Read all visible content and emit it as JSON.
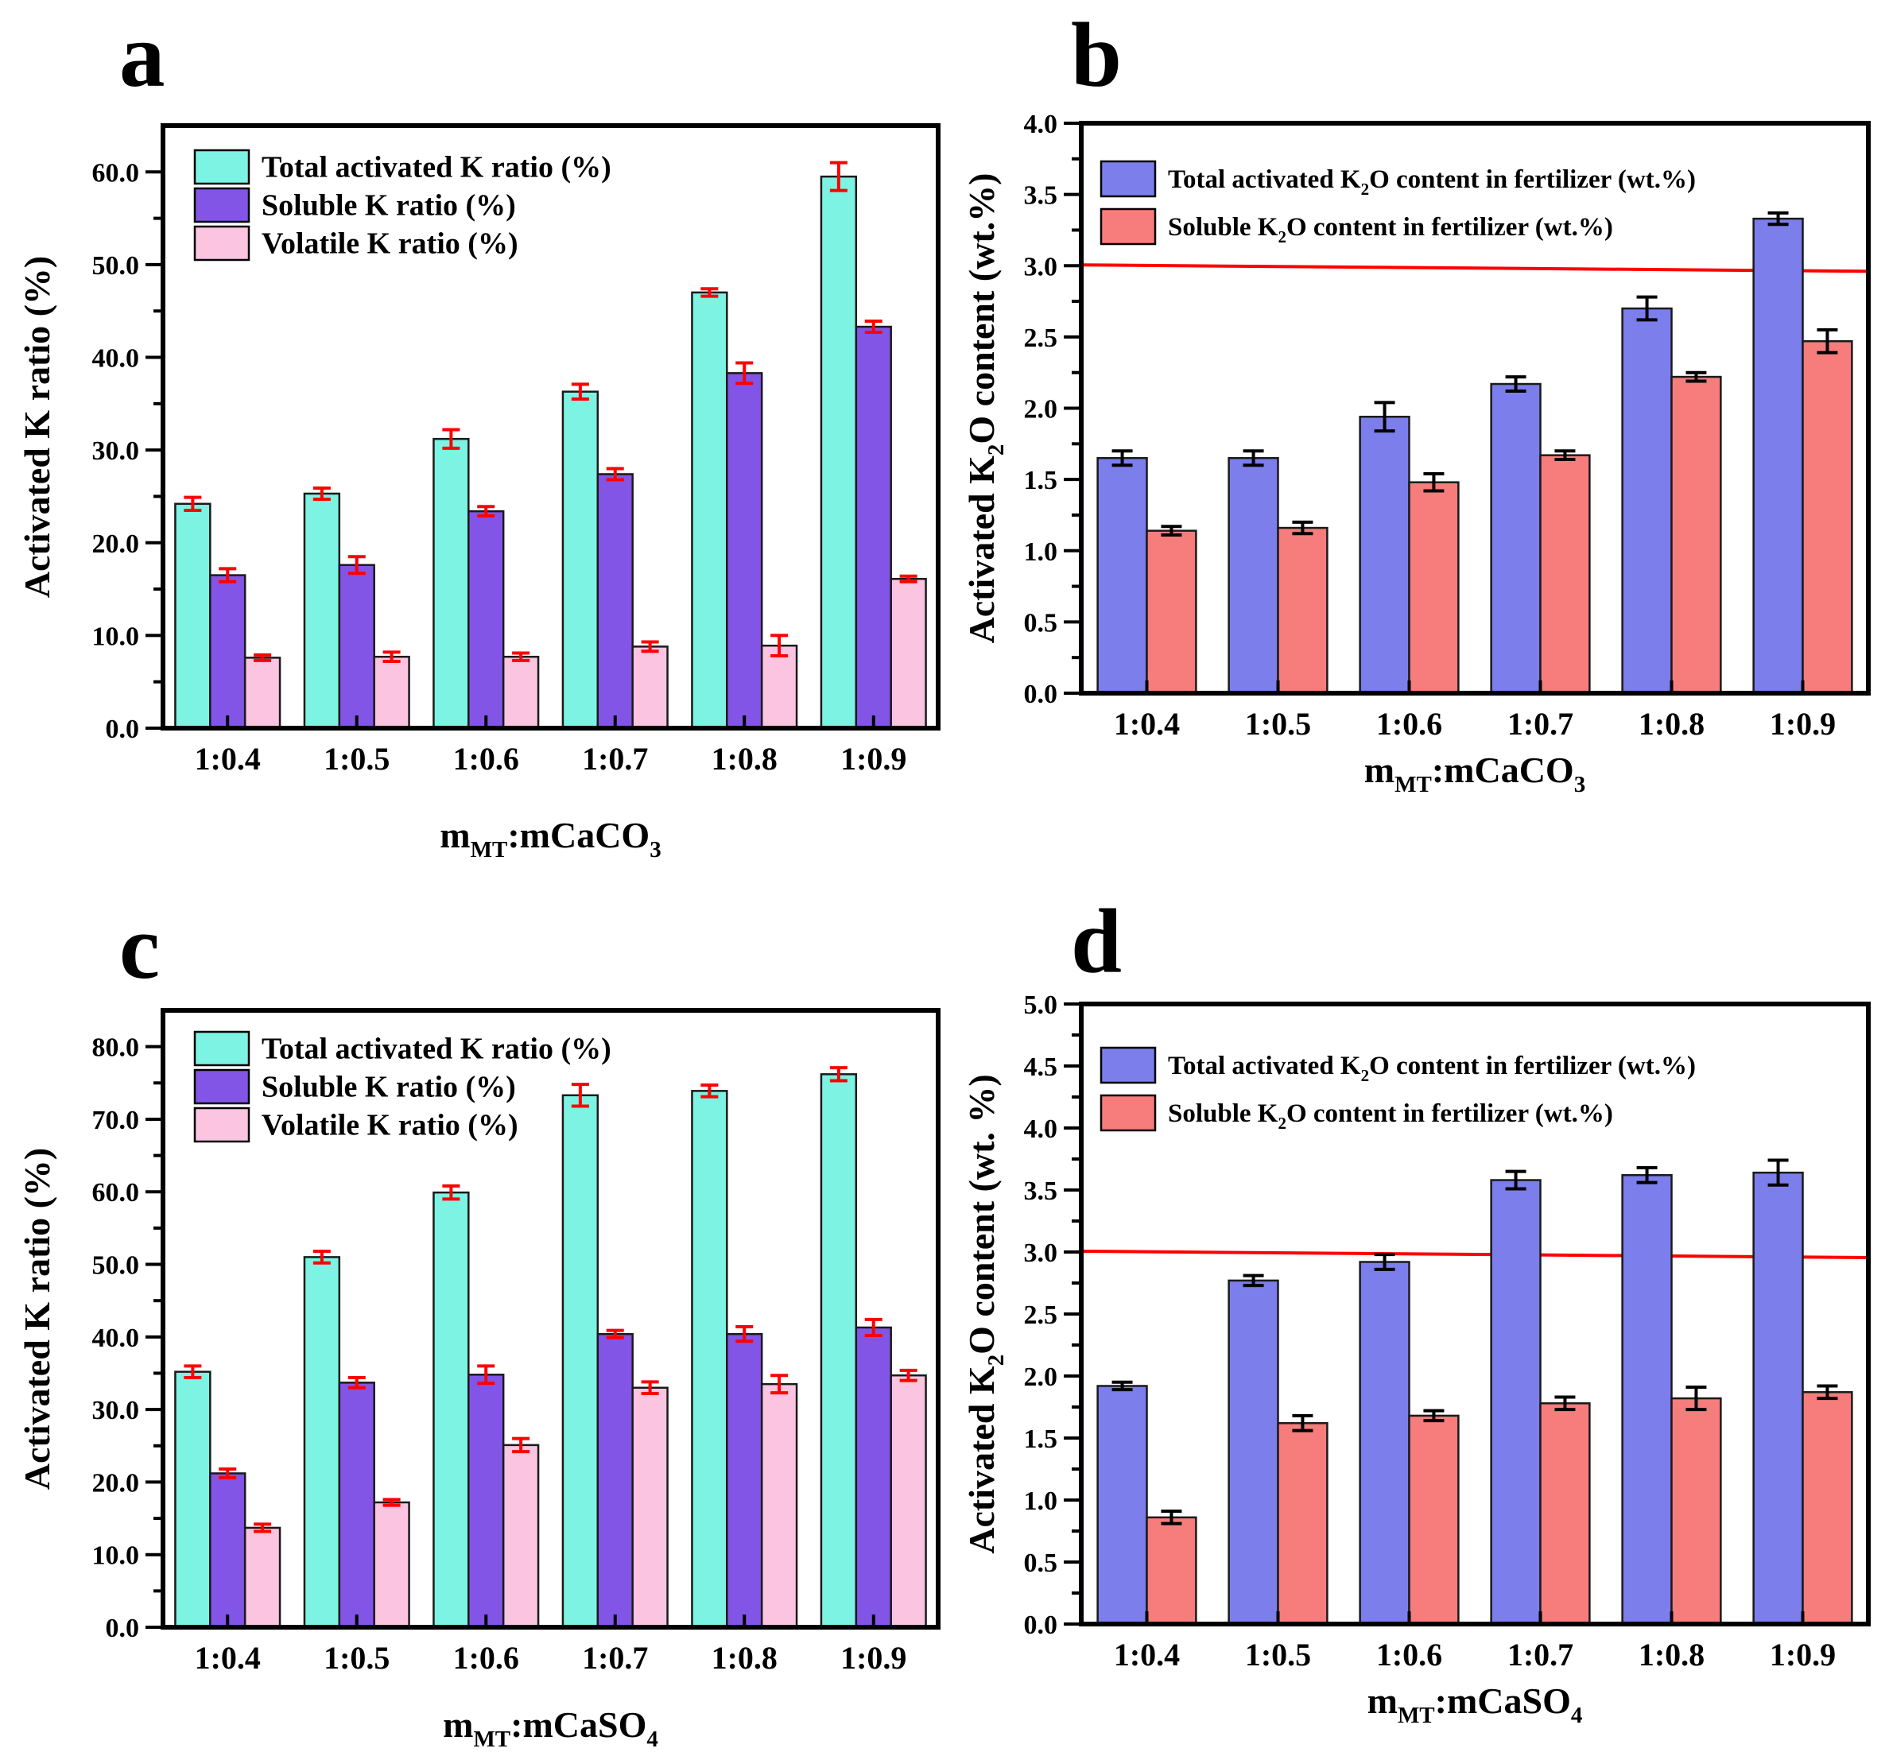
{
  "figure": {
    "background": "#FFFFFF"
  },
  "colors": {
    "cyan": "#7DF3E3",
    "purple": "#8355E6",
    "pink": "#FBC4E1",
    "blue": "#7C7EEC",
    "salmon": "#F77D7D",
    "axis": "#000000",
    "error_red": "#FF0000",
    "error_black": "#000000",
    "ref_line": "#FF0000",
    "bar_outline": "#1A1A1A"
  },
  "chart_data": [
    {
      "id": "a",
      "letter": "a",
      "type": "bar",
      "categories": [
        "1:0.4",
        "1:0.5",
        "1:0.6",
        "1:0.7",
        "1:0.8",
        "1:0.9"
      ],
      "series": [
        {
          "name": "Total activated K ratio (%)",
          "color": "cyan",
          "name_parts": [
            {
              "t": "Total activated K ratio (%)"
            }
          ],
          "values": [
            24.2,
            25.3,
            31.2,
            36.3,
            47.0,
            59.5
          ],
          "errors": [
            0.7,
            0.6,
            1.0,
            0.8,
            0.4,
            1.5
          ]
        },
        {
          "name": "Soluble K ratio (%)",
          "color": "purple",
          "name_parts": [
            {
              "t": "Soluble K ratio (%)"
            }
          ],
          "values": [
            16.5,
            17.6,
            23.4,
            27.4,
            38.3,
            43.3
          ],
          "errors": [
            0.7,
            0.9,
            0.5,
            0.6,
            1.1,
            0.6
          ]
        },
        {
          "name": "Volatile K ratio (%)",
          "color": "pink",
          "name_parts": [
            {
              "t": "Volatile K ratio (%)"
            }
          ],
          "values": [
            7.6,
            7.7,
            7.7,
            8.8,
            8.9,
            16.1
          ],
          "errors": [
            0.3,
            0.5,
            0.4,
            0.5,
            1.1,
            0.3
          ]
        }
      ],
      "ylabel": "Activated K ratio (%)",
      "ylabel_parts": [
        {
          "t": "Activated K ratio (%)"
        }
      ],
      "xlabel": "mMT:mCaCO3",
      "xlabel_parts": [
        {
          "t": "m"
        },
        {
          "t": "MT",
          "sub": true
        },
        {
          "t": ":m"
        },
        {
          "t": "CaCO",
          "sub": false
        },
        {
          "t": "3",
          "sub": true
        }
      ],
      "y_axis": {
        "min": 0,
        "max": 65,
        "tick_max": 60,
        "major": 10,
        "minor": 5,
        "decimals": 1
      },
      "error_bar_color": "error_red",
      "ref_line": null,
      "legend_pos": "top-left",
      "grid": false
    },
    {
      "id": "b",
      "letter": "b",
      "type": "bar",
      "categories": [
        "1:0.4",
        "1:0.5",
        "1:0.6",
        "1:0.7",
        "1:0.8",
        "1:0.9"
      ],
      "series": [
        {
          "name": "Total activated K2O content in fertilizer (wt.%)",
          "color": "blue",
          "name_parts": [
            {
              "t": "Total activated K"
            },
            {
              "t": "2",
              "sub": true
            },
            {
              "t": "O content in fertilizer (wt.%)"
            }
          ],
          "values": [
            1.65,
            1.65,
            1.94,
            2.17,
            2.7,
            3.33
          ],
          "errors": [
            0.05,
            0.05,
            0.1,
            0.05,
            0.08,
            0.04
          ]
        },
        {
          "name": "Soluble K2O content in fertilizer (wt.%)",
          "color": "salmon",
          "name_parts": [
            {
              "t": "Soluble K"
            },
            {
              "t": "2",
              "sub": true
            },
            {
              "t": "O content in fertilizer (wt.%)"
            }
          ],
          "values": [
            1.14,
            1.16,
            1.48,
            1.67,
            2.22,
            2.47
          ],
          "errors": [
            0.03,
            0.04,
            0.06,
            0.03,
            0.03,
            0.08
          ]
        }
      ],
      "ylabel": "Activated K2O content (wt.%)",
      "ylabel_parts": [
        {
          "t": "Activated K"
        },
        {
          "t": "2",
          "sub": true
        },
        {
          "t": "O content (wt.%)"
        }
      ],
      "xlabel": "mMT:mCaCO3",
      "xlabel_parts": [
        {
          "t": "m"
        },
        {
          "t": "MT",
          "sub": true
        },
        {
          "t": ":m"
        },
        {
          "t": "CaCO",
          "sub": false
        },
        {
          "t": "3",
          "sub": true
        }
      ],
      "y_axis": {
        "min": 0,
        "max": 4.0,
        "tick_max": 4.0,
        "major": 0.5,
        "minor": 0.25,
        "decimals": 1
      },
      "error_bar_color": "error_black",
      "ref_line": {
        "value": 3.0,
        "color": "ref_line"
      },
      "legend_pos": "top-left",
      "grid": false
    },
    {
      "id": "c",
      "letter": "c",
      "type": "bar",
      "categories": [
        "1:0.4",
        "1:0.5",
        "1:0.6",
        "1:0.7",
        "1:0.8",
        "1:0.9"
      ],
      "series": [
        {
          "name": "Total activated K ratio (%)",
          "color": "cyan",
          "name_parts": [
            {
              "t": "Total activated K ratio (%)"
            }
          ],
          "values": [
            35.2,
            51.0,
            59.9,
            73.3,
            73.9,
            76.2
          ],
          "errors": [
            0.8,
            0.8,
            0.9,
            1.5,
            0.8,
            0.9
          ]
        },
        {
          "name": "Soluble K ratio (%)",
          "color": "purple",
          "name_parts": [
            {
              "t": "Soluble K ratio (%)"
            }
          ],
          "values": [
            21.2,
            33.7,
            34.8,
            40.4,
            40.4,
            41.3
          ],
          "errors": [
            0.6,
            0.7,
            1.2,
            0.5,
            1.0,
            1.1
          ]
        },
        {
          "name": "Volatile K ratio (%)",
          "color": "pink",
          "name_parts": [
            {
              "t": "Volatile K ratio (%)"
            }
          ],
          "values": [
            13.7,
            17.2,
            25.1,
            33.0,
            33.5,
            34.7
          ],
          "errors": [
            0.5,
            0.4,
            0.9,
            0.8,
            1.2,
            0.7
          ]
        }
      ],
      "ylabel": "Activated K ratio (%)",
      "ylabel_parts": [
        {
          "t": "Activated K ratio (%)"
        }
      ],
      "xlabel": "mMT:mCaSO4",
      "xlabel_parts": [
        {
          "t": "m"
        },
        {
          "t": "MT",
          "sub": true
        },
        {
          "t": ":m"
        },
        {
          "t": "CaSO",
          "sub": false
        },
        {
          "t": "4",
          "sub": true
        }
      ],
      "y_axis": {
        "min": 0,
        "max": 85,
        "tick_max": 80,
        "major": 10,
        "minor": 5,
        "decimals": 1
      },
      "error_bar_color": "error_red",
      "ref_line": null,
      "legend_pos": "top-left",
      "grid": false
    },
    {
      "id": "d",
      "letter": "d",
      "type": "bar",
      "categories": [
        "1:0.4",
        "1:0.5",
        "1:0.6",
        "1:0.7",
        "1:0.8",
        "1:0.9"
      ],
      "series": [
        {
          "name": "Total activated K2O content in fertilizer (wt.%)",
          "color": "blue",
          "name_parts": [
            {
              "t": "Total activated K"
            },
            {
              "t": "2",
              "sub": true
            },
            {
              "t": "O content in fertilizer (wt.%)"
            }
          ],
          "values": [
            1.92,
            2.77,
            2.92,
            3.58,
            3.62,
            3.64
          ],
          "errors": [
            0.03,
            0.04,
            0.06,
            0.07,
            0.06,
            0.1
          ]
        },
        {
          "name": "Soluble K2O content in fertilizer (wt.%)",
          "color": "salmon",
          "name_parts": [
            {
              "t": "Soluble K"
            },
            {
              "t": "2",
              "sub": true
            },
            {
              "t": "O content in fertilizer (wt.%)"
            }
          ],
          "values": [
            0.86,
            1.62,
            1.68,
            1.78,
            1.82,
            1.87
          ],
          "errors": [
            0.05,
            0.06,
            0.04,
            0.05,
            0.09,
            0.05
          ]
        }
      ],
      "ylabel": "Activated K2O content (wt. %)",
      "ylabel_parts": [
        {
          "t": "Activated K"
        },
        {
          "t": "2",
          "sub": true
        },
        {
          "t": "O content (wt. %)"
        }
      ],
      "xlabel": "mMT:mCaSO4",
      "xlabel_parts": [
        {
          "t": "m"
        },
        {
          "t": "MT",
          "sub": true
        },
        {
          "t": ":m"
        },
        {
          "t": "CaSO",
          "sub": false
        },
        {
          "t": "4",
          "sub": true
        }
      ],
      "y_axis": {
        "min": 0,
        "max": 5.0,
        "tick_max": 5.0,
        "major": 0.5,
        "minor": 0.25,
        "decimals": 1
      },
      "error_bar_color": "error_black",
      "ref_line": {
        "value": 3.0,
        "color": "ref_line"
      },
      "legend_pos": "top-left",
      "grid": false
    }
  ]
}
